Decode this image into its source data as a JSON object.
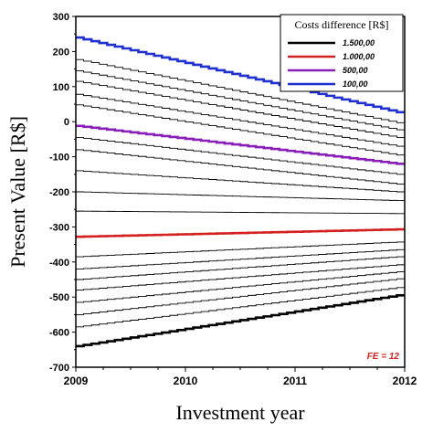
{
  "chart_data": {
    "type": "line",
    "xlabel": "Investment year",
    "ylabel": "Present Value [R$]",
    "xlim": [
      2009,
      2012
    ],
    "ylim": [
      -700,
      300
    ],
    "x_ticks": [
      "2009",
      "2010",
      "2011",
      "2012"
    ],
    "y_ticks": [
      "300",
      "200",
      "100",
      "0",
      "-100",
      "-200",
      "-300",
      "-400",
      "-500",
      "-600",
      "-700"
    ],
    "grid": false,
    "legend": {
      "title": "Costs difference [R$]",
      "placement": "top-right",
      "entries": [
        {
          "label": "1.500,00",
          "color": "#000000"
        },
        {
          "label": "1.000,00",
          "color": "#d42020"
        },
        {
          "label": "500,00",
          "color": "#8a1fb8"
        },
        {
          "label": "100,00",
          "color": "#1f2fd0"
        }
      ]
    },
    "annotation": {
      "text": "FE = 12",
      "color": "#d42020"
    },
    "series": [
      {
        "name": "100,00",
        "color": "#1f2fd0",
        "highlight": true,
        "x": [
          2009,
          2012
        ],
        "y": [
          240,
          27
        ]
      },
      {
        "color": "#000000",
        "highlight": false,
        "x": [
          2009,
          2012
        ],
        "y": [
          177,
          -3
        ]
      },
      {
        "color": "#000000",
        "highlight": false,
        "x": [
          2009,
          2012
        ],
        "y": [
          145,
          -23
        ]
      },
      {
        "color": "#000000",
        "highlight": false,
        "x": [
          2009,
          2012
        ],
        "y": [
          115,
          -45
        ]
      },
      {
        "color": "#000000",
        "highlight": false,
        "x": [
          2009,
          2012
        ],
        "y": [
          78,
          -70
        ]
      },
      {
        "color": "#000000",
        "highlight": false,
        "x": [
          2009,
          2012
        ],
        "y": [
          48,
          -95
        ]
      },
      {
        "name": "500,00",
        "color": "#8a1fb8",
        "highlight": true,
        "x": [
          2009,
          2012
        ],
        "y": [
          -12,
          -120
        ]
      },
      {
        "color": "#000000",
        "highlight": false,
        "x": [
          2009,
          2012
        ],
        "y": [
          -45,
          -150
        ]
      },
      {
        "color": "#000000",
        "highlight": false,
        "x": [
          2009,
          2012
        ],
        "y": [
          -80,
          -178
        ]
      },
      {
        "color": "#000000",
        "highlight": false,
        "x": [
          2009,
          2012
        ],
        "y": [
          -140,
          -200
        ]
      },
      {
        "color": "#000000",
        "highlight": false,
        "x": [
          2009,
          2012
        ],
        "y": [
          -200,
          -225
        ]
      },
      {
        "color": "#000000",
        "highlight": false,
        "x": [
          2009,
          2012
        ],
        "y": [
          -255,
          -262
        ]
      },
      {
        "name": "1.000,00",
        "color": "#d42020",
        "highlight": true,
        "x": [
          2009,
          2012
        ],
        "y": [
          -328,
          -307
        ]
      },
      {
        "color": "#000000",
        "highlight": false,
        "x": [
          2009,
          2012
        ],
        "y": [
          -385,
          -343
        ]
      },
      {
        "color": "#000000",
        "highlight": false,
        "x": [
          2009,
          2012
        ],
        "y": [
          -420,
          -365
        ]
      },
      {
        "color": "#000000",
        "highlight": false,
        "x": [
          2009,
          2012
        ],
        "y": [
          -450,
          -385
        ]
      },
      {
        "color": "#000000",
        "highlight": false,
        "x": [
          2009,
          2012
        ],
        "y": [
          -480,
          -408
        ]
      },
      {
        "color": "#000000",
        "highlight": false,
        "x": [
          2009,
          2012
        ],
        "y": [
          -515,
          -428
        ]
      },
      {
        "color": "#000000",
        "highlight": false,
        "x": [
          2009,
          2012
        ],
        "y": [
          -550,
          -448
        ]
      },
      {
        "color": "#000000",
        "highlight": false,
        "x": [
          2009,
          2012
        ],
        "y": [
          -585,
          -473
        ]
      },
      {
        "name": "1.500,00",
        "color": "#000000",
        "highlight": true,
        "x": [
          2009,
          2012
        ],
        "y": [
          -640,
          -495
        ]
      }
    ]
  }
}
